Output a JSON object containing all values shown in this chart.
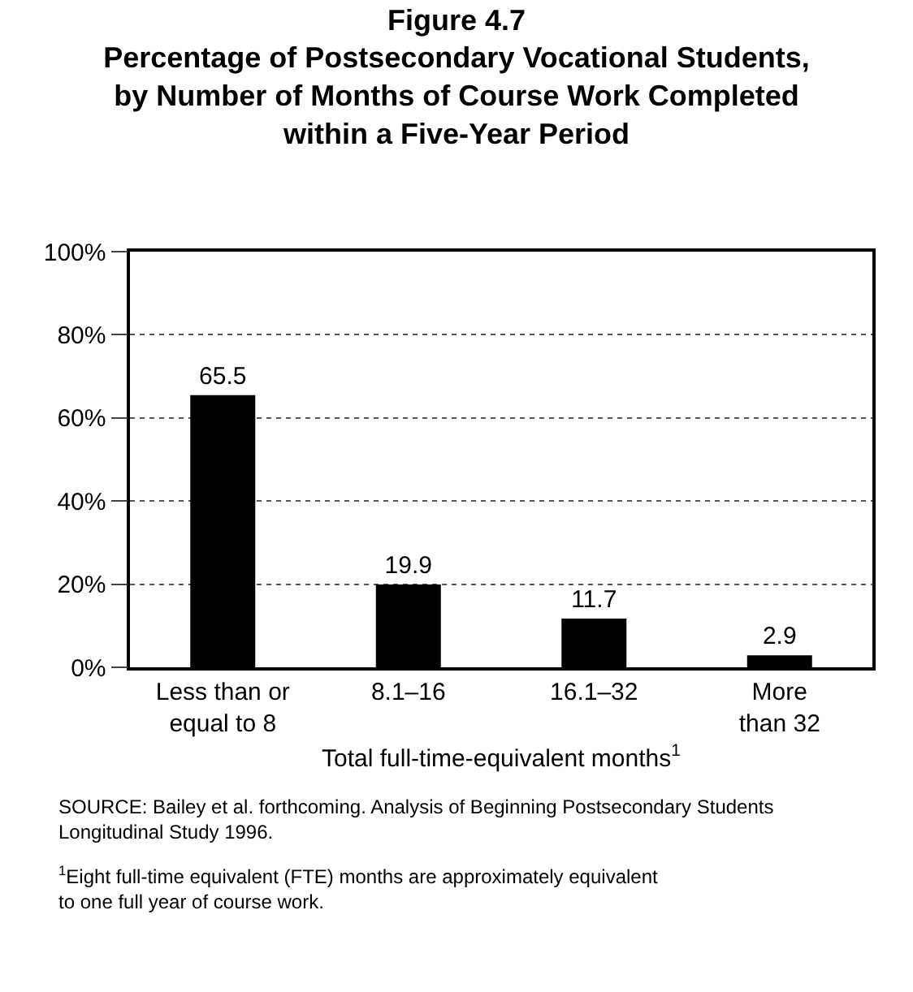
{
  "chart_data": {
    "type": "bar",
    "title": "Figure 4.7",
    "subtitle": "Percentage of Postsecondary Vocational Students, by Number of Months of Course Work Completed within a Five-Year Period",
    "xlabel": "Total full-time-equivalent months$^{1}$",
    "categories": [
      "Less than or equal to 8",
      "8.1–16",
      "16.1–32",
      "More than 32"
    ],
    "values": [
      65.5,
      19.9,
      11.7,
      2.9
    ],
    "color": "#000000",
    "data_labels": true,
    "ylim": [
      0,
      100
    ],
    "yticks": [
      {
        "value": 0,
        "label": "0%"
      },
      {
        "value": 20,
        "label": "20%"
      },
      {
        "value": 40,
        "label": "40%"
      },
      {
        "value": 60,
        "label": "60%"
      },
      {
        "value": 80,
        "label": "80%"
      },
      {
        "value": 100,
        "label": "100%"
      }
    ],
    "grid": "y",
    "legend": false,
    "annotations": [
      "SOURCE: Bailey et al. forthcoming. Analysis of Beginning Postsecondary Students Longitudinal Study 1996.",
      "$^{1}$Eight full-time equivalent (FTE) months are approximately equivalent to one full year of course work."
    ]
  }
}
